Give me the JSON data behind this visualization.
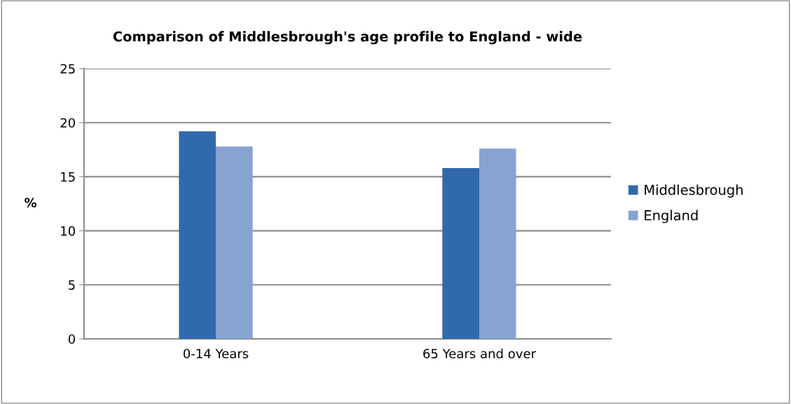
{
  "chart_data": {
    "type": "bar",
    "title": "Comparison of Middlesbrough's age profile to England - wide",
    "ylabel": "%",
    "categories": [
      "0-14 Years",
      "65 Years and over"
    ],
    "series": [
      {
        "name": "Middlesbrough",
        "color": "#3169ad",
        "values": [
          19.2,
          15.8
        ]
      },
      {
        "name": "England",
        "color": "#86a3d2",
        "values": [
          17.8,
          17.6
        ]
      }
    ],
    "ylim": [
      0,
      25
    ],
    "yticks": [
      0,
      5,
      10,
      15,
      20,
      25
    ],
    "grid": "y",
    "legend": "right"
  }
}
